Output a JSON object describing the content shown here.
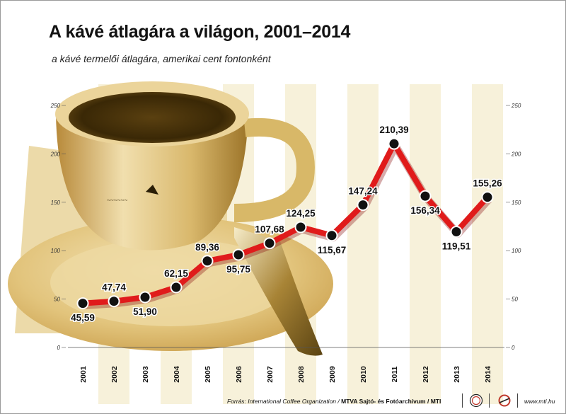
{
  "title": "A kávé átlagára a világon, 2001–2014",
  "subtitle": "a kávé termelői átlagára, amerikai cent fontonként",
  "chart_data": {
    "type": "line",
    "title": "A kávé átlagára a világon, 2001–2014",
    "subtitle": "a kávé termelői átlagára, amerikai cent fontonként",
    "categories": [
      "2001",
      "2002",
      "2003",
      "2004",
      "2005",
      "2006",
      "2007",
      "2008",
      "2009",
      "2010",
      "2011",
      "2012",
      "2013",
      "2014"
    ],
    "values": [
      45.59,
      47.74,
      51.9,
      62.15,
      89.36,
      95.75,
      107.68,
      124.25,
      115.67,
      147.24,
      210.39,
      156.34,
      119.51,
      155.26
    ],
    "labels": [
      "45,59",
      "47,74",
      "51,90",
      "62,15",
      "89,36",
      "95,75",
      "107,68",
      "124,25",
      "115,67",
      "147,24",
      "210,39",
      "156,34",
      "119,51",
      "155,26"
    ],
    "ylim": [
      0,
      250
    ],
    "yticks": [
      0,
      50,
      100,
      150,
      200,
      250
    ],
    "grid": "alternating vertical bands",
    "line_color": "#e01b1b",
    "marker_color": "#111111"
  },
  "footer": {
    "source": "Forrás: International Coffee Organization / ",
    "org": "MTVA Sajtó- és Fotóarchívum / MTI",
    "site": "www.mti.hu"
  }
}
